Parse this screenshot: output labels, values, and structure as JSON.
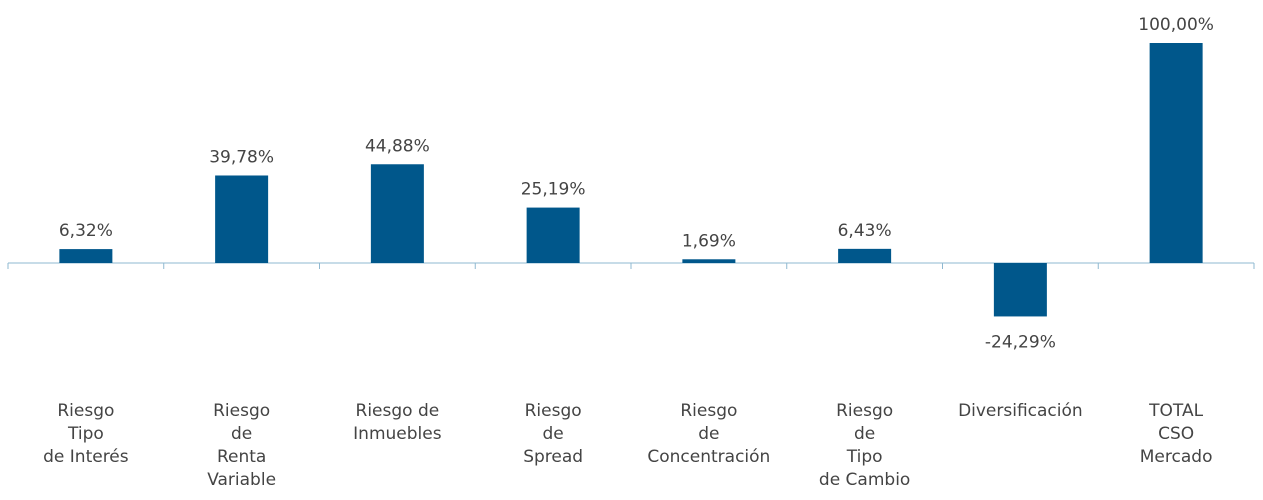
{
  "chart_data": {
    "type": "bar",
    "categories": [
      [
        "Riesgo",
        "Tipo",
        "de Interés"
      ],
      [
        "Riesgo",
        "de",
        "Renta",
        "Variable"
      ],
      [
        "Riesgo de",
        "Inmuebles"
      ],
      [
        "Riesgo",
        "de",
        "Spread"
      ],
      [
        "Riesgo",
        "de",
        "Concentración"
      ],
      [
        "Riesgo",
        "de",
        "Tipo",
        "de Cambio"
      ],
      [
        "Diversificación"
      ],
      [
        "TOTAL",
        "CSO",
        "Mercado"
      ]
    ],
    "values": [
      6.32,
      39.78,
      44.88,
      25.19,
      1.69,
      6.43,
      -24.29,
      100
    ],
    "value_labels": [
      "6,32%",
      "39,78%",
      "44,88%",
      "25,19%",
      "1,69%",
      "6,43%",
      "-24,29%",
      "100,00%"
    ],
    "color": "#00578b"
  }
}
